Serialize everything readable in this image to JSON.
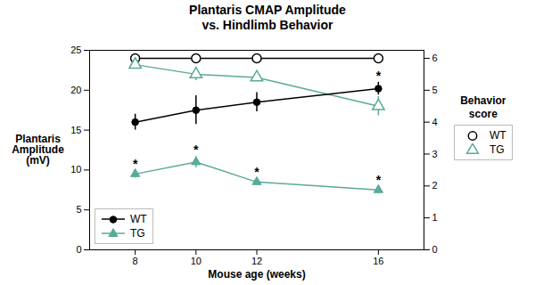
{
  "chart_data": {
    "type": "line",
    "title": "Plantaris CMAP Amplitude\nvs. Hindlimb Behavior",
    "xlabel": "Mouse age (weeks)",
    "ylabel": "Plantaris\nAmplitude\n(mV)",
    "y2label": "Behavior\nscore",
    "x": [
      8,
      10,
      12,
      16
    ],
    "xlim": [
      6.5,
      17.5
    ],
    "xticks": [
      8,
      10,
      12,
      16
    ],
    "ylim": [
      0,
      25
    ],
    "yticks": [
      0,
      5,
      10,
      15,
      20,
      25
    ],
    "y2lim": [
      0,
      6.25
    ],
    "y2ticks": [
      0,
      1,
      2,
      3,
      4,
      5,
      6
    ],
    "legend": "lower left",
    "series": [
      {
        "name": "WT",
        "color": "#000000",
        "marker": "circle",
        "values": [
          16.0,
          17.5,
          18.5,
          20.2
        ],
        "errors": [
          1.0,
          1.8,
          1.2,
          0.8
        ]
      },
      {
        "name": "TG",
        "color": "#5aaa99",
        "marker": "triangle-up",
        "values": [
          9.5,
          11.0,
          8.5,
          7.5
        ],
        "errors": [
          0.5,
          0.7,
          0.4,
          0.5
        ]
      },
      {
        "name": "WT",
        "color": "#000000",
        "marker": "circle-open",
        "axis": "y2",
        "values": [
          6.0,
          6.0,
          6.0,
          6.0
        ]
      },
      {
        "name": "TG",
        "color": "#5aaa99",
        "marker": "triangle-up-open",
        "axis": "y2",
        "values": [
          5.8,
          5.5,
          5.4,
          4.5
        ],
        "errors": [
          0.1,
          0.2,
          0.1,
          0.3
        ]
      }
    ],
    "annotations": [
      {
        "x": 8,
        "y": 10.2,
        "text": "*"
      },
      {
        "x": 10,
        "y": 12.0,
        "text": "*"
      },
      {
        "x": 12,
        "y": 9.2,
        "text": "*"
      },
      {
        "x": 16,
        "y": 8.2,
        "text": "*"
      },
      {
        "x": 16,
        "y": 21.3,
        "text": "*"
      }
    ]
  }
}
